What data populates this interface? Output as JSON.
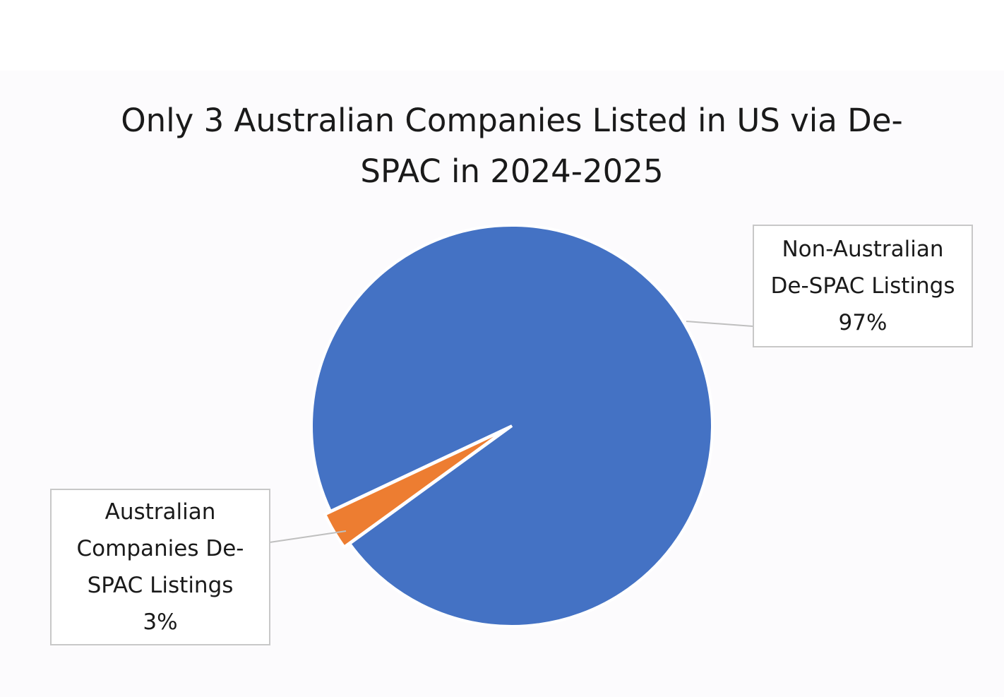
{
  "chart_data": {
    "type": "pie",
    "title": "Only 3 Australian Companies Listed in US via De-SPAC in 2024-2025",
    "categories": [
      "Australian Companies De-SPAC Listings",
      "Non-Australian De-SPAC Listings"
    ],
    "values": [
      3,
      97
    ],
    "value_labels": [
      "3%",
      "97%"
    ],
    "colors": [
      "#ed7d31",
      "#4472c4"
    ]
  }
}
